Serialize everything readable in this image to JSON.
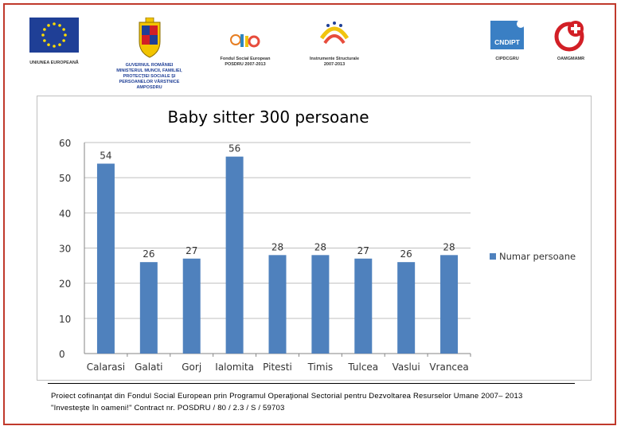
{
  "logos": [
    {
      "name": "eu-flag-logo",
      "caption": "UNIUNEA EUROPEANĂ"
    },
    {
      "name": "government-crest-logo",
      "caption": "GUVERNUL ROMÂNIEI\nMINISTERUL MUNCII, FAMILIEI,\nPROTECŢIEI SOCIALE ŞI\nPERSOANELOR VÂRSTNICE\nAMPOSDRU"
    },
    {
      "name": "fse-logo",
      "caption": "Fondul Social European\nPOSDRU 2007-2013"
    },
    {
      "name": "structural-instruments-logo",
      "caption": "Instrumente Structurale\n2007-2013"
    },
    {
      "name": "cndipt-logo",
      "caption": "CIPDCGRU",
      "mark": "CNDIPT"
    },
    {
      "name": "red-cross-logo",
      "caption": "OAMGMAMR"
    }
  ],
  "chart_data": {
    "type": "bar",
    "title": "Baby sitter 300 persoane",
    "categories": [
      "Calarasi",
      "Galati",
      "Gorj",
      "Ialomita",
      "Pitesti",
      "Timis",
      "Tulcea",
      "Vaslui",
      "Vrancea"
    ],
    "series": [
      {
        "name": "Numar persoane",
        "values": [
          54,
          26,
          27,
          56,
          28,
          28,
          27,
          26,
          28
        ],
        "color": "#4f81bd"
      }
    ],
    "ylim": [
      0,
      60
    ],
    "yticks": [
      0,
      10,
      20,
      30,
      40,
      50,
      60
    ],
    "grid": true,
    "legend": "right",
    "data_labels": true
  },
  "footer": {
    "line1": "Proiect cofinanţat din Fondul Social European prin Programul Operaţional Sectorial pentru Dezvoltarea Resurselor Umane 2007– 2013",
    "line2": "\"Investeşte în oameni!\" Contract nr. POSDRU / 80 / 2.3 / S / 59703"
  }
}
